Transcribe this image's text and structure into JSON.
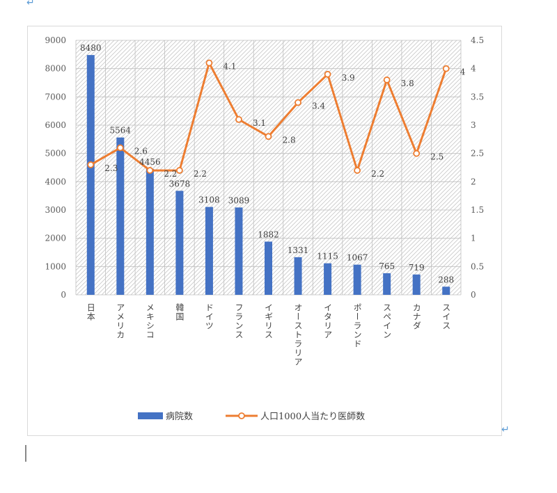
{
  "doc": {
    "para_mark": "↵"
  },
  "chart_data": {
    "type": "bar+line",
    "categories": [
      "日本",
      "アメリカ",
      "メキシコ",
      "韓国",
      "ドイツ",
      "フランス",
      "イギリス",
      "オーストラリア",
      "イタリア",
      "ポーランド",
      "スペイン",
      "カナダ",
      "スイス"
    ],
    "series": [
      {
        "name": "病院数",
        "type": "bar",
        "axis": "left",
        "color": "#4472c4",
        "values": [
          8480,
          5564,
          4456,
          3678,
          3108,
          3089,
          1882,
          1331,
          1115,
          1067,
          765,
          719,
          288
        ]
      },
      {
        "name": "人口1000人当たり医師数",
        "type": "line",
        "axis": "right",
        "color": "#ed7d31",
        "values": [
          2.3,
          2.6,
          2.2,
          2.2,
          4.1,
          3.1,
          2.8,
          3.4,
          3.9,
          2.2,
          3.8,
          2.5,
          4
        ]
      }
    ],
    "y_left": {
      "min": 0,
      "max": 9000,
      "ticks": [
        0,
        1000,
        2000,
        3000,
        4000,
        5000,
        6000,
        7000,
        8000,
        9000
      ]
    },
    "y_right": {
      "min": 0,
      "max": 4.5,
      "ticks": [
        "0",
        "0.5",
        "1",
        "1.5",
        "2",
        "2.5",
        "3",
        "3.5",
        "4",
        "4.5"
      ]
    },
    "grid": true,
    "legend": "bottom"
  }
}
